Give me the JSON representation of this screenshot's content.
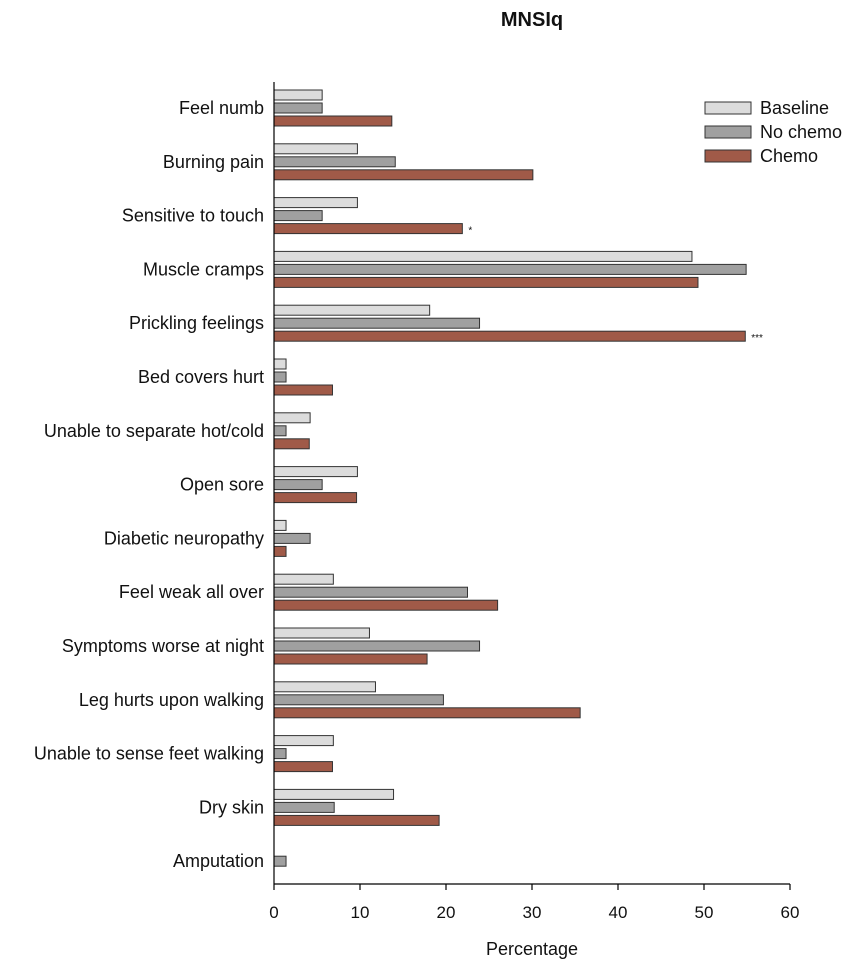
{
  "chart_data": {
    "type": "bar",
    "orientation": "horizontal",
    "title": "MNSIq",
    "xlabel": "Percentage",
    "ylabel": "",
    "xlim": [
      0,
      60
    ],
    "xticks": [
      0,
      10,
      20,
      30,
      40,
      50,
      60
    ],
    "grid": false,
    "legend_position": "top-right",
    "categories": [
      "Feel numb",
      "Burning pain",
      "Sensitive to touch",
      "Muscle cramps",
      "Prickling feelings",
      "Bed covers hurt",
      "Unable to separate hot/cold",
      "Open sore",
      "Diabetic neuropathy",
      "Feel weak all over",
      "Symptoms worse at night",
      "Leg hurts upon walking",
      "Unable to sense feet walking",
      "Dry skin",
      "Amputation"
    ],
    "series": [
      {
        "name": "Baseline",
        "color": "#dcdcdc",
        "values": [
          5.6,
          9.7,
          9.7,
          48.6,
          18.1,
          1.4,
          4.2,
          9.7,
          1.4,
          6.9,
          11.1,
          11.8,
          6.9,
          13.9,
          0
        ]
      },
      {
        "name": "No chemo",
        "color": "#a0a0a0",
        "values": [
          5.6,
          14.1,
          5.6,
          54.9,
          23.9,
          1.4,
          1.4,
          5.6,
          4.2,
          22.5,
          23.9,
          19.7,
          1.4,
          7.0,
          1.4
        ]
      },
      {
        "name": "Chemo",
        "color": "#a05a48",
        "values": [
          13.7,
          30.1,
          21.9,
          49.3,
          54.8,
          6.8,
          4.1,
          9.6,
          1.4,
          26.0,
          17.8,
          35.6,
          6.8,
          19.2,
          0
        ]
      }
    ],
    "annotations": [
      {
        "category": "Sensitive to touch",
        "series": "Chemo",
        "text": "*"
      },
      {
        "category": "Prickling feelings",
        "series": "Chemo",
        "text": "***"
      }
    ]
  }
}
